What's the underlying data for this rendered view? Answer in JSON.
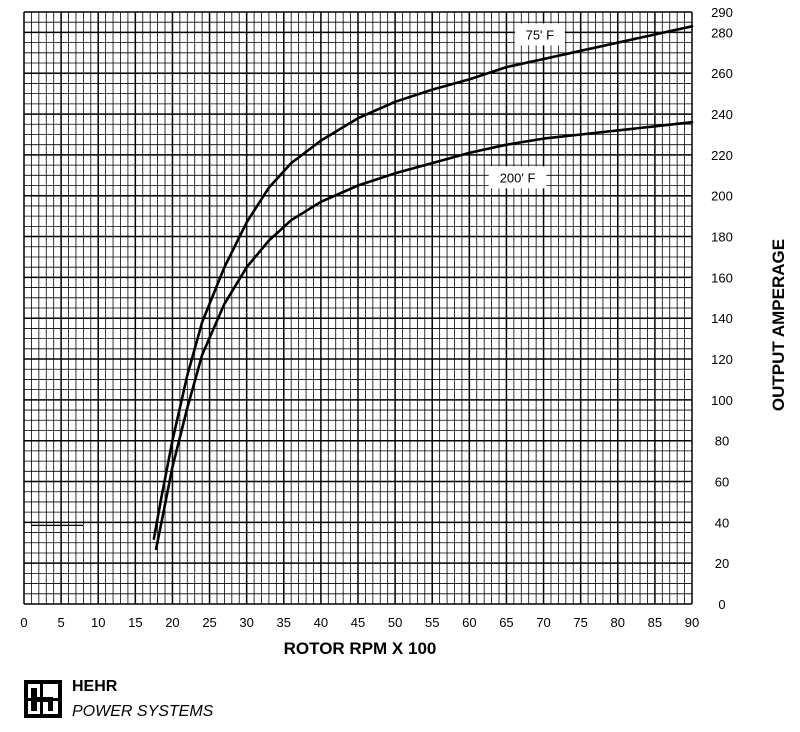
{
  "chart_data": {
    "type": "line",
    "xlabel": "ROTOR RPM X 100",
    "ylabel": "OUTPUT AMPERAGE",
    "xlim": [
      0,
      90
    ],
    "ylim": [
      0,
      290
    ],
    "x_ticks": [
      0,
      5,
      10,
      15,
      20,
      25,
      30,
      35,
      40,
      45,
      50,
      55,
      60,
      65,
      70,
      75,
      80,
      85,
      90
    ],
    "y_ticks": [
      0,
      20,
      40,
      60,
      80,
      100,
      120,
      140,
      160,
      180,
      200,
      220,
      240,
      260,
      280,
      290
    ],
    "x_minor_step": 1,
    "y_minor_step": 5,
    "grid": true,
    "y_axis_side": "right",
    "series": [
      {
        "name": "75' F",
        "x": [
          17.5,
          18.5,
          20,
          22,
          24,
          27,
          30,
          33,
          36,
          40,
          45,
          50,
          55,
          60,
          65,
          70,
          75,
          80,
          85,
          90
        ],
        "y": [
          32,
          52,
          80,
          112,
          138,
          165,
          187,
          204,
          216,
          227,
          238,
          246,
          252,
          257,
          263,
          267,
          271,
          275,
          279,
          283
        ]
      },
      {
        "name": "200' F",
        "x": [
          17.8,
          18.8,
          20,
          22,
          24,
          27,
          30,
          33,
          36,
          40,
          45,
          50,
          55,
          60,
          65,
          70,
          75,
          80,
          85,
          90
        ],
        "y": [
          27,
          45,
          67,
          96,
          122,
          147,
          165,
          178,
          188,
          197,
          205,
          211,
          216,
          221,
          225,
          228,
          230,
          232,
          234,
          236
        ]
      }
    ],
    "annotations": [
      {
        "text": "75' F",
        "series": 0,
        "at_x": 69.5,
        "at_y": 279
      },
      {
        "text": "200' F",
        "series": 1,
        "at_x": 66.5,
        "at_y": 209
      }
    ],
    "baseline_mark": {
      "y": 38.5,
      "x_from": 1,
      "x_to": 8
    }
  },
  "brand": {
    "name": "HEHR",
    "subtitle": "POWER SYSTEMS"
  }
}
